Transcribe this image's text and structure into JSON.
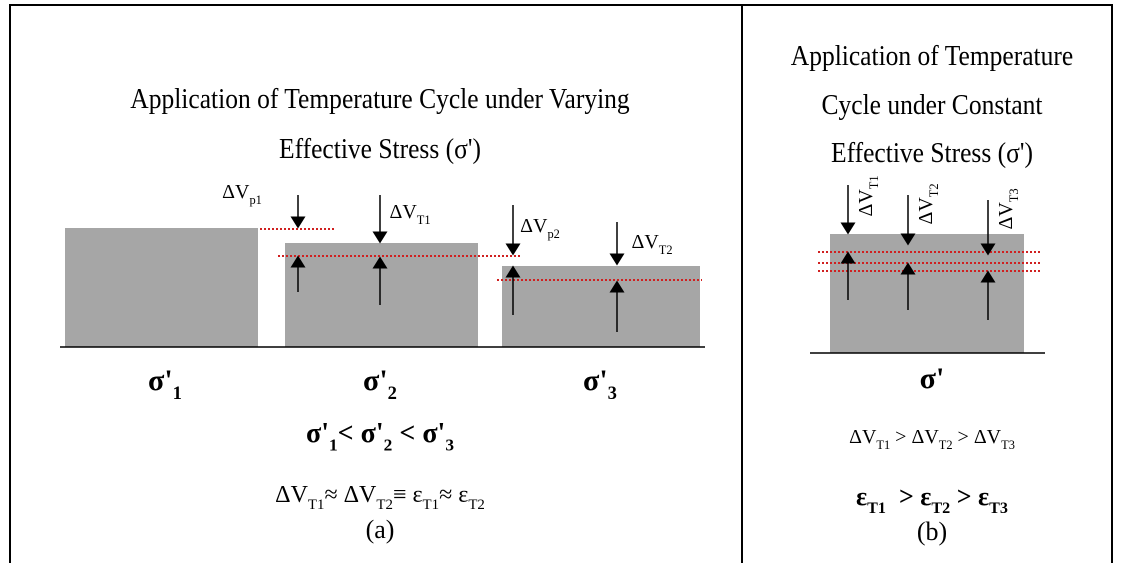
{
  "panels": [
    {
      "title": [
        "Application of Temperature Cycle under Varying",
        "Effective Stress (σ')"
      ],
      "stresses": [
        {
          "base": "σ'",
          "sub": "1"
        },
        {
          "base": "σ'",
          "sub": "2"
        },
        {
          "base": "σ'",
          "sub": "3"
        }
      ],
      "changes": [
        {
          "base": "ΔV",
          "sub": "p1"
        },
        {
          "base": "ΔV",
          "sub": "T1"
        },
        {
          "base": "ΔV",
          "sub": "p2"
        },
        {
          "base": "ΔV",
          "sub": "T2"
        }
      ],
      "relation": [
        {
          "base": "σ'",
          "sub": "1"
        },
        "< ",
        {
          "base": "σ'",
          "sub": "2"
        },
        " < ",
        {
          "base": "σ'",
          "sub": "3"
        }
      ],
      "equivalence": [
        {
          "base": "ΔV",
          "sub": "T1"
        },
        "≈ ",
        {
          "base": "ΔV",
          "sub": "T2"
        },
        "≡ ",
        {
          "base": "ε",
          "sub": "T1"
        },
        "≈ ",
        {
          "base": "ε",
          "sub": "T2"
        }
      ],
      "caption": "(a)"
    },
    {
      "title": [
        "Application of Temperature",
        "Cycle under Constant",
        "Effective Stress (σ')"
      ],
      "stresses": [
        {
          "base": "σ'"
        }
      ],
      "changes": [
        {
          "base": "ΔV",
          "sub": "T1"
        },
        {
          "base": "ΔV",
          "sub": "T2"
        },
        {
          "base": "ΔV",
          "sub": "T3"
        }
      ],
      "relation": [
        {
          "base": "ΔV",
          "sub": "T1"
        },
        " > ",
        {
          "base": "ΔV",
          "sub": "T2"
        },
        " > ",
        {
          "base": "ΔV",
          "sub": "T3"
        }
      ],
      "equivalence": [
        {
          "base": "ε",
          "sub": "T1"
        },
        "  > ",
        {
          "base": "ε",
          "sub": "T2"
        },
        " > ",
        {
          "base": "ε",
          "sub": "T3"
        }
      ],
      "caption": "(b)"
    }
  ]
}
